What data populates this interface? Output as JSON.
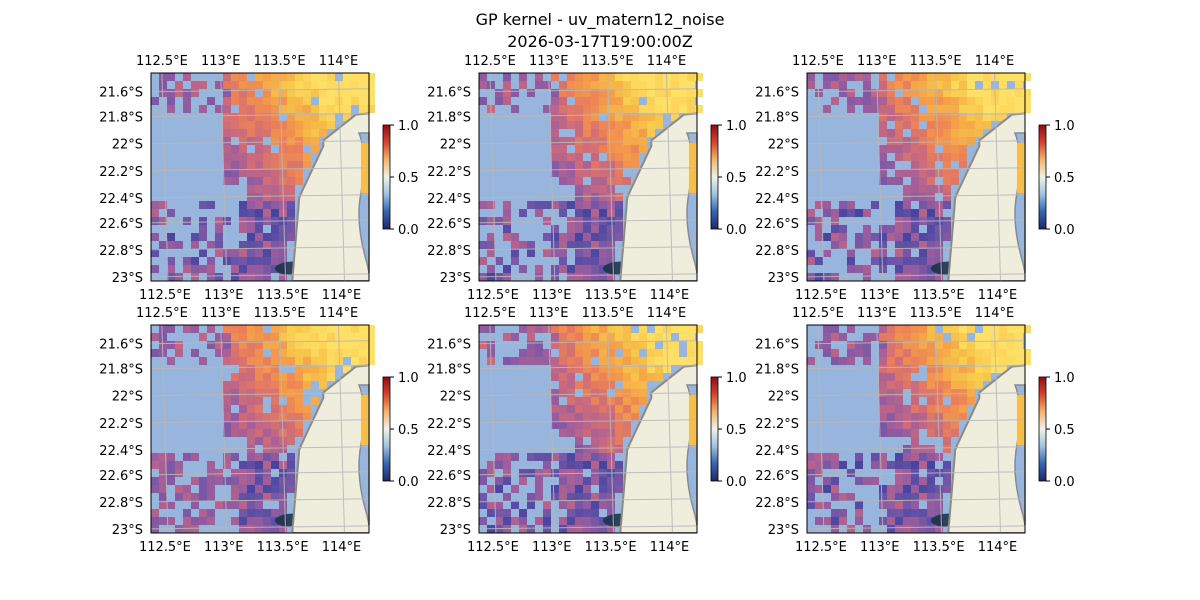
{
  "title": "GP kernel - uv_matern12_noise",
  "subtitle": "2026-03-17T19:00:00Z",
  "axes": {
    "lon_ticks": [
      "112.5°E",
      "113°E",
      "113.5°E",
      "114°E"
    ],
    "lat_ticks": [
      "21.6°S",
      "21.8°S",
      "22°S",
      "22.2°S",
      "22.4°S",
      "22.6°S",
      "22.8°S",
      "23°S"
    ]
  },
  "colorbar": {
    "ticks": [
      "0.0",
      "0.5",
      "1.0"
    ]
  },
  "colors": {
    "ocean": "#97b5dd",
    "land": "#efeedd",
    "coast": "#8a8a8a",
    "grid": "#b8b8b8",
    "cmap": [
      "#1a2a6c",
      "#3b3f9a",
      "#6b55a8",
      "#9b5d9e",
      "#c9697f",
      "#ea7f5a",
      "#f5a048",
      "#f7c64a",
      "#ffe066"
    ]
  },
  "panels": [
    {
      "id": "p1"
    },
    {
      "id": "p2"
    },
    {
      "id": "p3"
    },
    {
      "id": "p4"
    },
    {
      "id": "p5"
    },
    {
      "id": "p6"
    }
  ]
}
